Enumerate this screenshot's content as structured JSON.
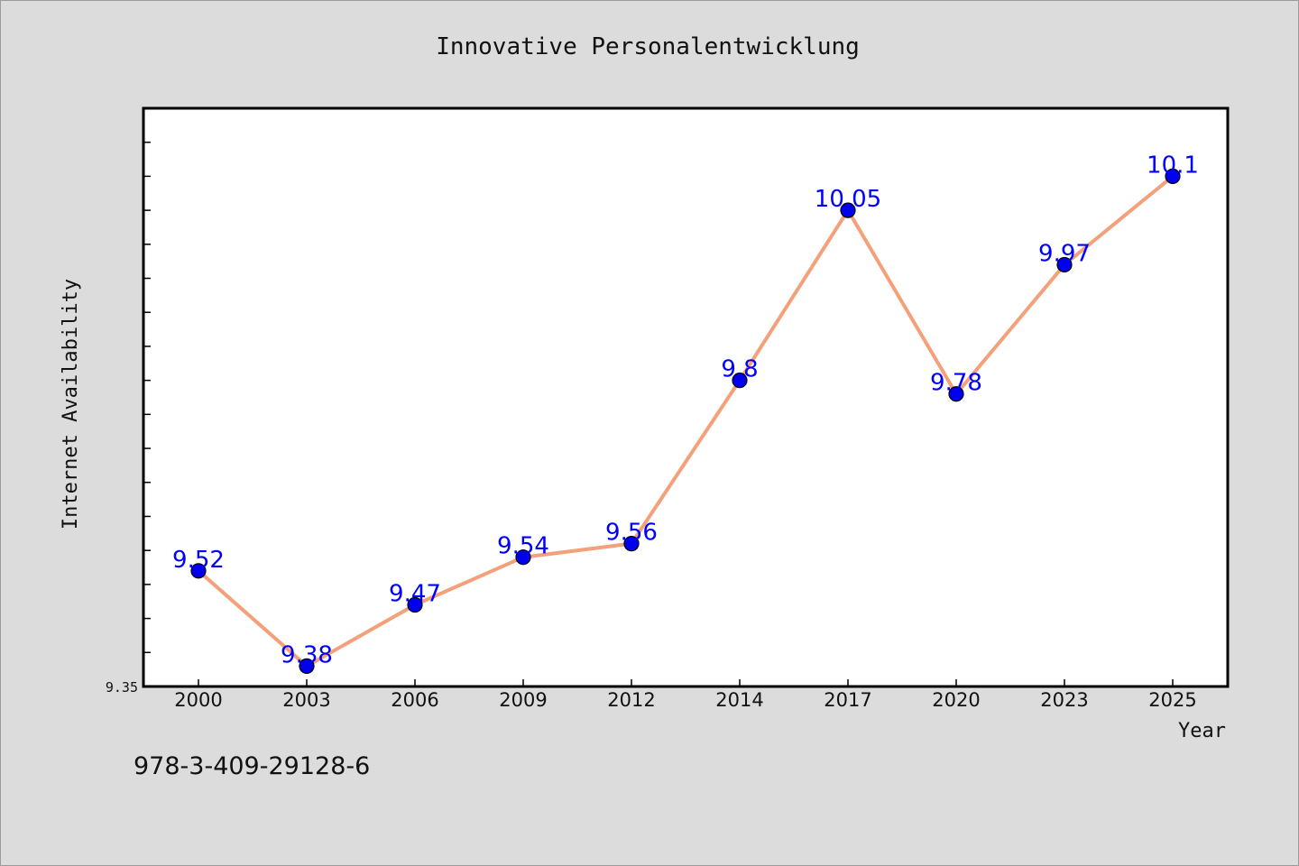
{
  "chart_data": {
    "type": "line",
    "title": "Innovative Personalentwicklung",
    "xlabel": "Year",
    "ylabel": "Internet Availability",
    "categories": [
      "2000",
      "2003",
      "2006",
      "2009",
      "2012",
      "2014",
      "2017",
      "2020",
      "2023",
      "2025"
    ],
    "series": [
      {
        "values": [
          9.52,
          9.38,
          9.47,
          9.54,
          9.56,
          9.8,
          10.05,
          9.78,
          9.97,
          10.1
        ],
        "labels": [
          "9.52",
          "9.38",
          "9.47",
          "9.54",
          "9.56",
          "9.8",
          "10.05",
          "9.78",
          "9.97",
          "10.1"
        ]
      }
    ],
    "y_tick_labels": [
      "9.35"
    ],
    "ylim": [
      9.35,
      10.2
    ],
    "y_minor_step": 0.05,
    "grid": false,
    "legend": "none",
    "colors": {
      "line": "#f4a07a",
      "marker": "#0000ee",
      "marker_edge": "#000000",
      "data_label": "#0000ff",
      "plot_background": "#ffffff",
      "figure_background": "#dcdcdc"
    }
  },
  "footer": {
    "isbn": "978-3-409-29128-6"
  }
}
